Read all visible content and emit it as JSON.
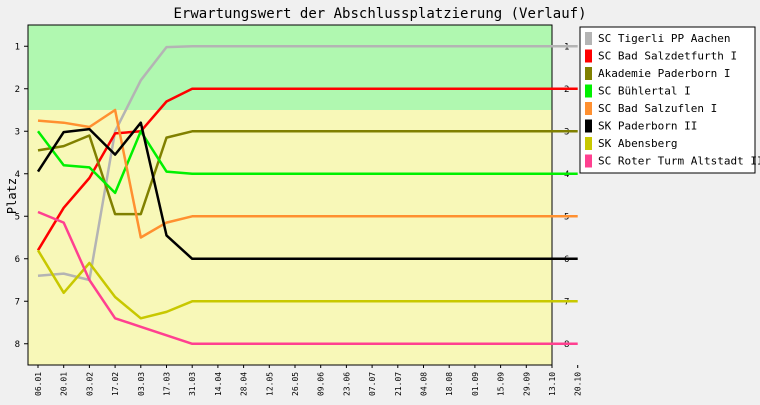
{
  "chart_data": {
    "type": "line",
    "title": "Erwartungswert der Abschlussplatzierung (Verlauf)",
    "ylabel": "Platz",
    "xlabel": "",
    "ylim": [
      8.5,
      0.5
    ],
    "y_inverted": true,
    "y_ticks": [
      1,
      2,
      3,
      4,
      5,
      6,
      7,
      8
    ],
    "y_ticks_right": true,
    "bands": [
      {
        "from": 0.5,
        "to": 2.5,
        "color": "#b0f8b0"
      },
      {
        "from": 2.5,
        "to": 8.5,
        "color": "#f8f8b8"
      }
    ],
    "grid": false,
    "legend_position": "right",
    "x": [
      "06.01",
      "20.01",
      "03.02",
      "17.02",
      "03.03",
      "17.03",
      "31.03",
      "14.04",
      "28.04",
      "12.05",
      "26.05",
      "09.06",
      "23.06",
      "07.07",
      "21.07",
      "04.08",
      "18.08",
      "01.09",
      "15.09",
      "29.09",
      "13.10",
      "20.10"
    ],
    "series": [
      {
        "name": "SC Tigerli PP Aachen",
        "color": "#b4b4b4",
        "values": [
          6.4,
          6.35,
          6.5,
          3.0,
          1.8,
          1.02,
          1.0,
          1.0,
          1.0,
          1.0,
          1.0,
          1.0,
          1.0,
          1.0,
          1.0,
          1.0,
          1.0,
          1.0,
          1.0,
          1.0,
          1.0,
          1.0
        ]
      },
      {
        "name": "SC Bad Salzdetfurth I",
        "color": "#ff0000",
        "values": [
          5.8,
          4.8,
          4.1,
          3.05,
          3.0,
          2.3,
          2.0,
          2.0,
          2.0,
          2.0,
          2.0,
          2.0,
          2.0,
          2.0,
          2.0,
          2.0,
          2.0,
          2.0,
          2.0,
          2.0,
          2.0,
          2.0
        ]
      },
      {
        "name": "Akademie Paderborn I",
        "color": "#808000",
        "values": [
          3.45,
          3.35,
          3.1,
          4.95,
          4.95,
          3.15,
          3.0,
          3.0,
          3.0,
          3.0,
          3.0,
          3.0,
          3.0,
          3.0,
          3.0,
          3.0,
          3.0,
          3.0,
          3.0,
          3.0,
          3.0,
          3.0
        ]
      },
      {
        "name": "SC Bühlertal I",
        "color": "#00f000",
        "values": [
          3.0,
          3.8,
          3.85,
          4.45,
          3.0,
          3.95,
          4.0,
          4.0,
          4.0,
          4.0,
          4.0,
          4.0,
          4.0,
          4.0,
          4.0,
          4.0,
          4.0,
          4.0,
          4.0,
          4.0,
          4.0,
          4.0
        ]
      },
      {
        "name": "SC Bad Salzuflen I",
        "color": "#ff9030",
        "values": [
          2.75,
          2.8,
          2.9,
          2.5,
          5.5,
          5.15,
          5.0,
          5.0,
          5.0,
          5.0,
          5.0,
          5.0,
          5.0,
          5.0,
          5.0,
          5.0,
          5.0,
          5.0,
          5.0,
          5.0,
          5.0,
          5.0
        ]
      },
      {
        "name": "SK Paderborn II",
        "color": "#000000",
        "values": [
          3.95,
          3.02,
          2.95,
          3.55,
          2.8,
          5.45,
          6.0,
          6.0,
          6.0,
          6.0,
          6.0,
          6.0,
          6.0,
          6.0,
          6.0,
          6.0,
          6.0,
          6.0,
          6.0,
          6.0,
          6.0,
          6.0
        ]
      },
      {
        "name": "SK Abensberg",
        "color": "#c8c800",
        "values": [
          5.8,
          6.8,
          6.1,
          6.9,
          7.4,
          7.25,
          7.0,
          7.0,
          7.0,
          7.0,
          7.0,
          7.0,
          7.0,
          7.0,
          7.0,
          7.0,
          7.0,
          7.0,
          7.0,
          7.0,
          7.0,
          7.0
        ]
      },
      {
        "name": "SC Roter Turm Altstadt II",
        "color": "#ff4090",
        "values": [
          4.9,
          5.15,
          6.5,
          7.4,
          7.6,
          7.8,
          8.0,
          8.0,
          8.0,
          8.0,
          8.0,
          8.0,
          8.0,
          8.0,
          8.0,
          8.0,
          8.0,
          8.0,
          8.0,
          8.0,
          8.0,
          8.0
        ]
      }
    ]
  }
}
